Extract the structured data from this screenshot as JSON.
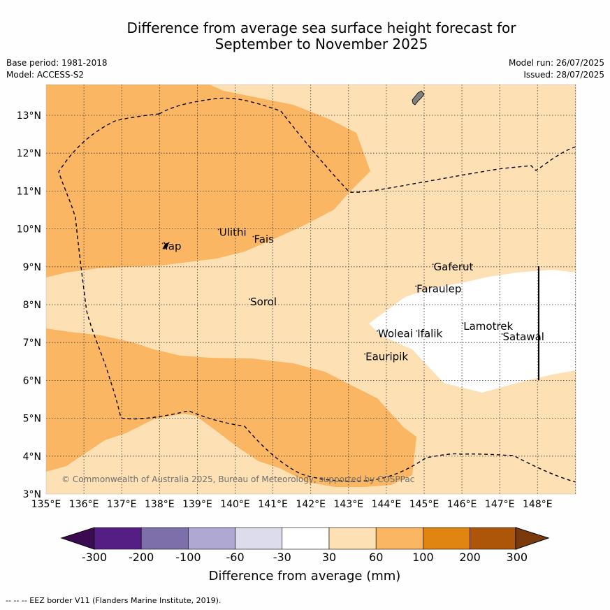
{
  "header": {
    "title_line1": "Difference from average sea surface height forecast for",
    "title_line2": "September to November 2025",
    "base_period": "Base period: 1981-2018",
    "model": "Model: ACCESS-S2",
    "model_run": "Model run: 26/07/2025",
    "issued": "Issued: 28/07/2025"
  },
  "map": {
    "lon_labels": [
      "135°E",
      "136°E",
      "137°E",
      "138°E",
      "139°E",
      "140°E",
      "141°E",
      "142°E",
      "143°E",
      "144°E",
      "145°E",
      "146°E",
      "147°E",
      "148°E"
    ],
    "lat_labels": [
      "3°N",
      "4°N",
      "5°N",
      "6°N",
      "7°N",
      "8°N",
      "9°N",
      "10°N",
      "11°N",
      "12°N",
      "13°N"
    ],
    "places": [
      {
        "name": "Ulithi",
        "lon": 139.58,
        "lat": 9.82
      },
      {
        "name": "Fais",
        "lon": 140.5,
        "lat": 9.63
      },
      {
        "name": "Yap",
        "lon": 138.1,
        "lat": 9.45
      },
      {
        "name": "Gaferut",
        "lon": 145.25,
        "lat": 8.9
      },
      {
        "name": "Faraulep",
        "lon": 144.8,
        "lat": 8.32
      },
      {
        "name": "Sorol",
        "lon": 140.4,
        "lat": 7.98
      },
      {
        "name": "Woleai",
        "lon": 143.78,
        "lat": 7.14
      },
      {
        "name": "Ifalik",
        "lon": 144.82,
        "lat": 7.14
      },
      {
        "name": "Lamotrek",
        "lon": 146.04,
        "lat": 7.34
      },
      {
        "name": "Satawal",
        "lon": 147.08,
        "lat": 7.06
      },
      {
        "name": "Eauripik",
        "lon": 143.45,
        "lat": 6.53
      }
    ],
    "copyright": "© Commonwealth of Australia 2025, Bureau of Meteorology, supported by COSPPac",
    "colors": {
      "band_30_60": "#fde0b4",
      "band_60_100": "#fab662",
      "land": "#808080"
    }
  },
  "legend": {
    "ticks": [
      "-300",
      "-200",
      "-100",
      "-60",
      "-30",
      "30",
      "60",
      "100",
      "200",
      "300"
    ],
    "colors": [
      "#3b0b52",
      "#541e85",
      "#7d6fa9",
      "#afa8d2",
      "#dcdcec",
      "#ffffff",
      "#fde0b4",
      "#fab662",
      "#e08412",
      "#ad5609",
      "#7a3a0c"
    ],
    "label": "Difference from average (mm)"
  },
  "footer": {
    "eez_note": "--  --  -- EEZ border V11 (Flanders Marine Institute, 2019)."
  }
}
